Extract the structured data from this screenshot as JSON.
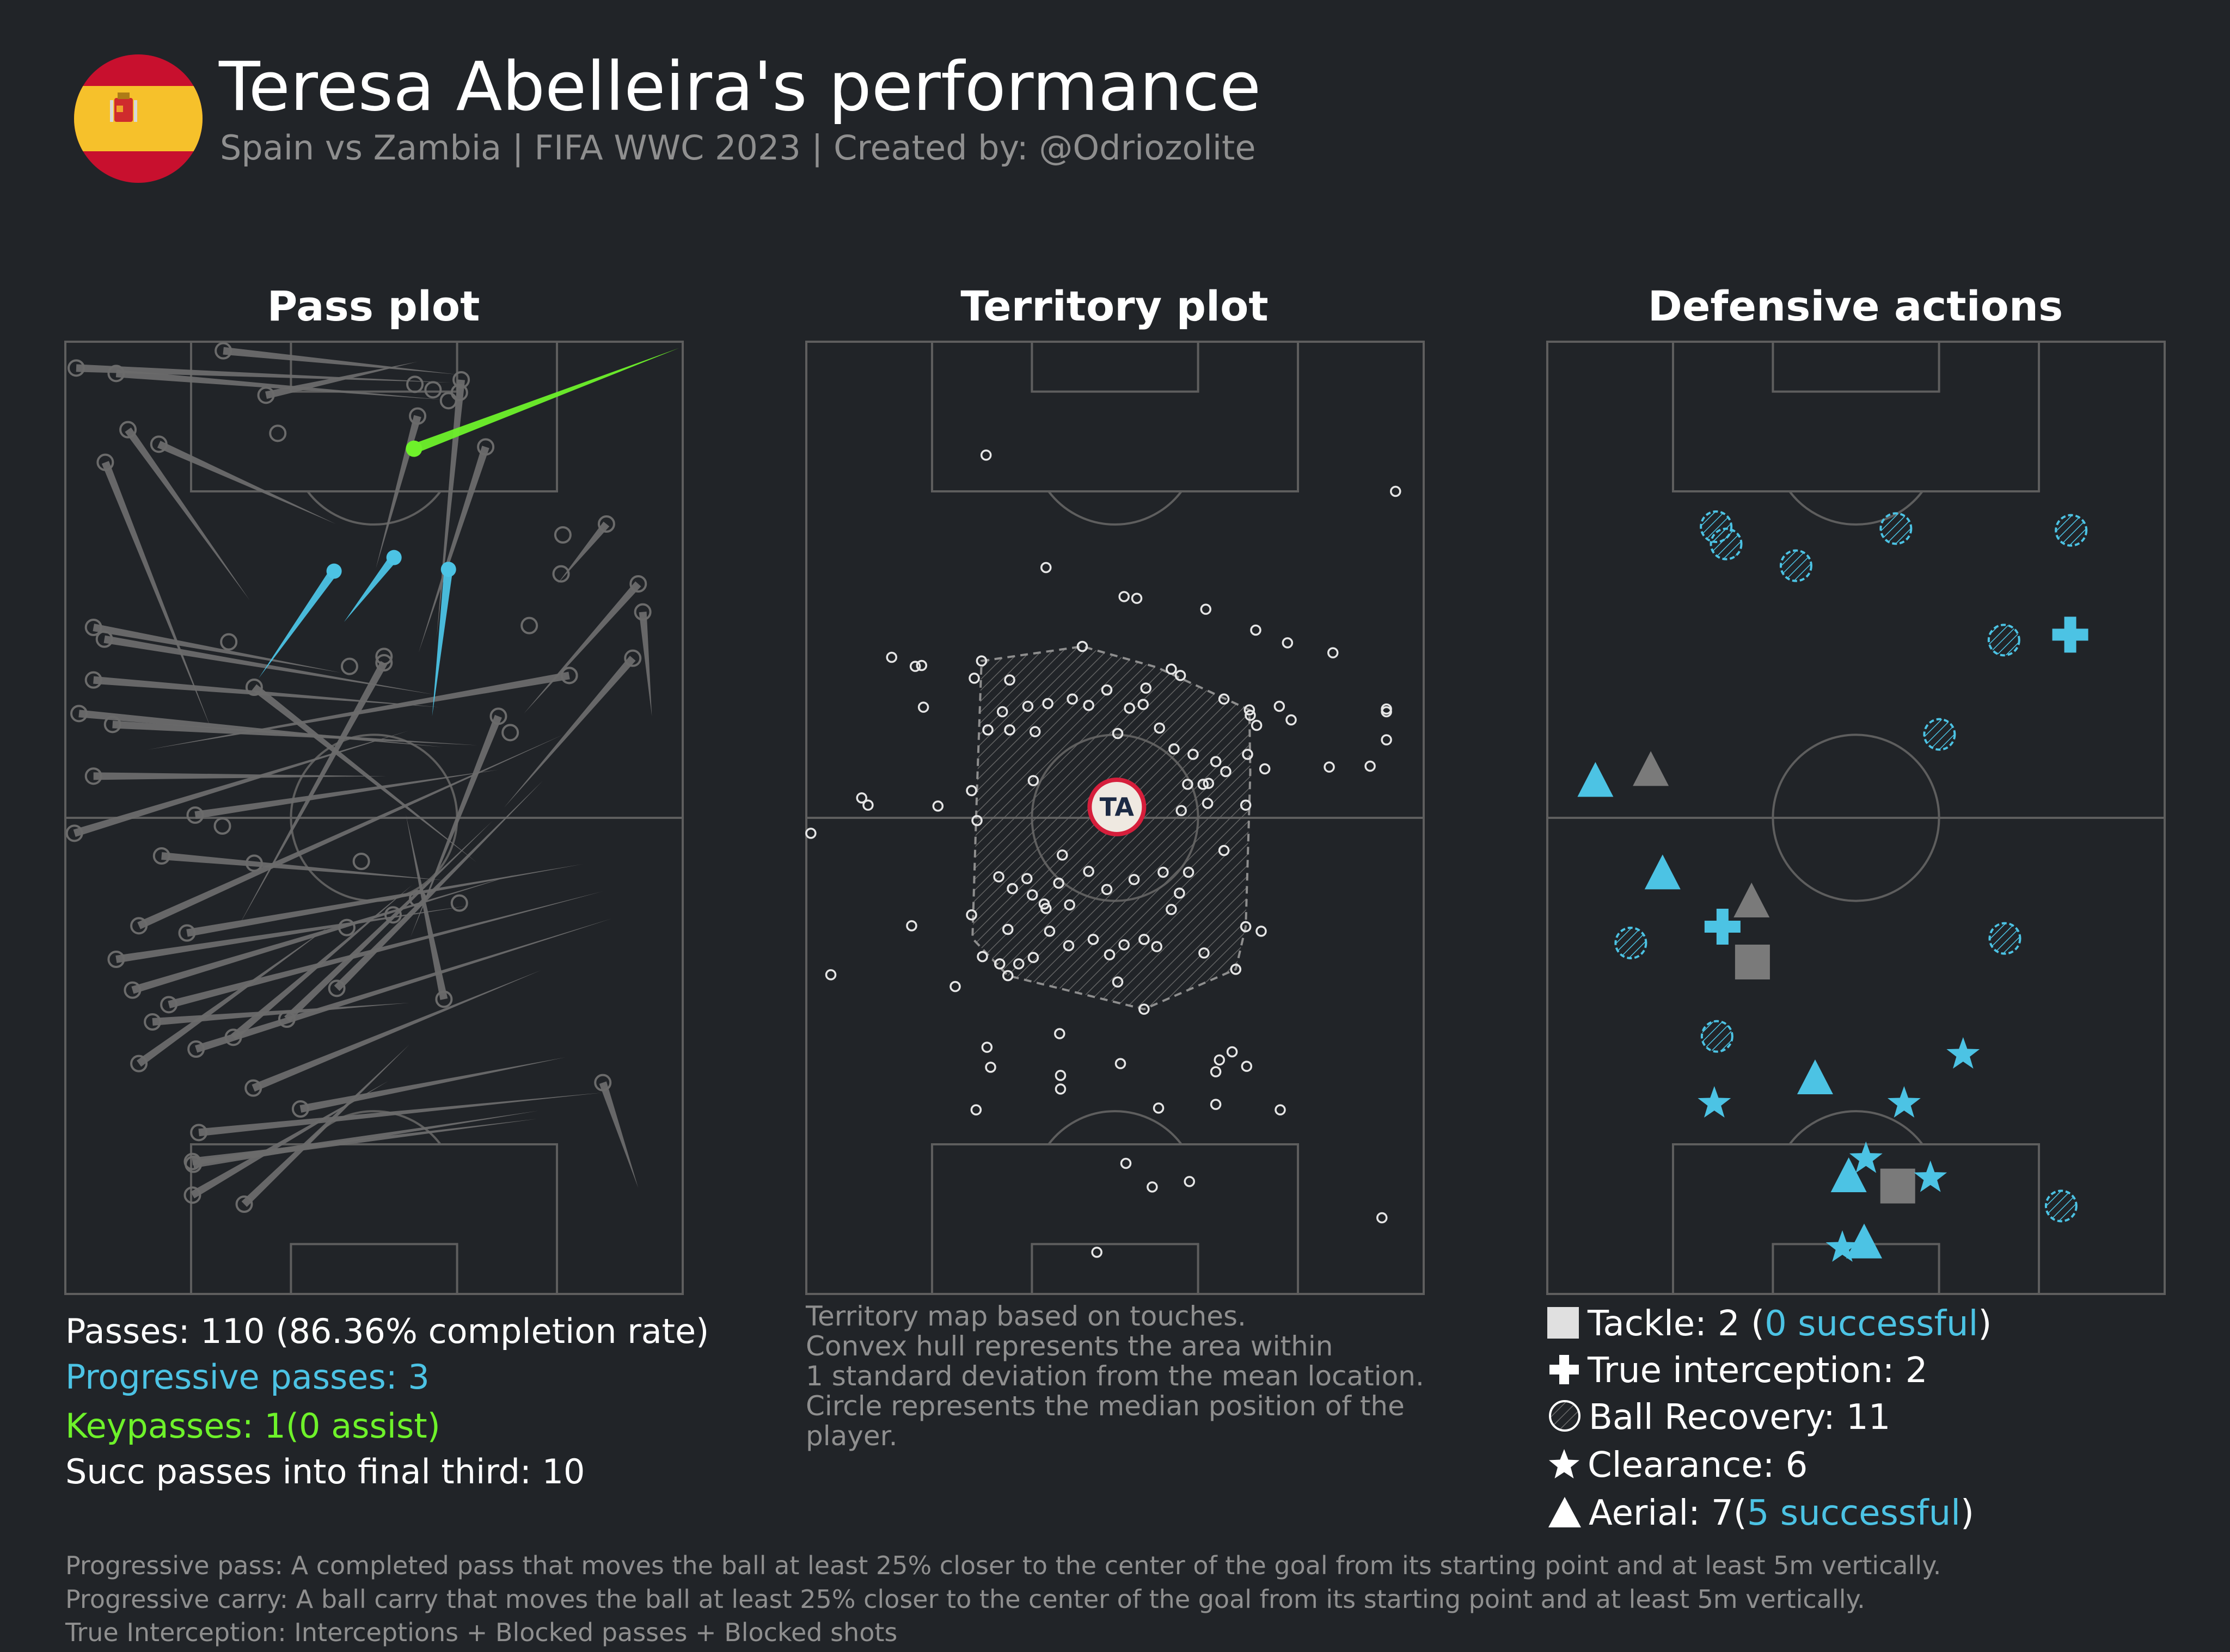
{
  "header": {
    "title": "Teresa Abelleira's performance",
    "subtitle": "Spain vs Zambia | FIFA WWC 2023 | Created by: @Odriozolite",
    "flag_icon": "spain-flag-icon"
  },
  "colors": {
    "background": "#212428",
    "pitch_line": "#5e5e5e",
    "pass": "#6b6b6b",
    "progressive": "#4cc3e4",
    "keypass": "#6ef22a",
    "muted": "#8f8f8f",
    "badge_ring": "#d61f3c"
  },
  "panels": {
    "pass_plot_title": "Pass plot",
    "territory_plot_title": "Territory plot",
    "defensive_title": "Defensive actions"
  },
  "pass_stats": {
    "passes": "Passes: 110 (86.36% completion rate)",
    "progressive": "Progressive passes: 3",
    "keypasses": "Keypasses: 1(0 assist)",
    "final_third": "Succ passes into final third: 10"
  },
  "territory_note": {
    "line1": "Territory map based on touches.",
    "line2": "Convex hull represents the area within",
    "line3": "1 standard deviation from the mean location.",
    "line4": "Circle represents the median position of the",
    "line5": "player.",
    "median_label": "TA"
  },
  "defensive_legend": {
    "tackle_prefix": "Tackle: 2 (",
    "tackle_success": "0 successful",
    "tackle_suffix": ")",
    "interception": "True interception: 2",
    "recovery": "Ball Recovery: 11",
    "clearance": "Clearance: 6",
    "aerial_prefix": "Aerial: 7(",
    "aerial_success": "5 successful",
    "aerial_suffix": ")"
  },
  "footnotes": {
    "line1": "Progressive pass: A completed pass that moves the ball at least 25% closer to the center of the goal from its starting point and at least 5m vertically.",
    "line2": "Progressive carry: A ball carry that moves the ball at least 25% closer to the center of the goal from its starting point and at least 5m vertically.",
    "line3": "True Interception: Interceptions + Blocked passes + Blocked shots"
  },
  "chart_data": [
    {
      "type": "scatter",
      "title": "Pass plot",
      "description_units": "pitch coordinates: x 0-68 across (left to right), y 0-105 up the pitch (attacking upwards)",
      "xlim": [
        0,
        68
      ],
      "ylim": [
        0,
        105
      ],
      "keypasses": [
        {
          "x1": 38.4,
          "y1": 93.2,
          "x2": 67.6,
          "y2": 104.3
        }
      ],
      "progressive_passes": [
        {
          "x1": 29.6,
          "y1": 79.7,
          "x2": 21.3,
          "y2": 67.9
        },
        {
          "x1": 36.2,
          "y1": 81.2,
          "x2": 30.7,
          "y2": 74.1
        },
        {
          "x1": 42.2,
          "y1": 79.9,
          "x2": 40.4,
          "y2": 63.7
        }
      ],
      "passes": [
        {
          "x1": 1.2,
          "y1": 102.1,
          "x2": 42.5,
          "y2": 100.5
        },
        {
          "x1": 5.6,
          "y1": 101.5,
          "x2": 41.6,
          "y2": 98.6
        },
        {
          "x1": 17.4,
          "y1": 104.0,
          "x2": 43.1,
          "y2": 101.4
        },
        {
          "x1": 22.1,
          "y1": 99.1,
          "x2": 38.8,
          "y2": 102.8
        },
        {
          "x1": 6.9,
          "y1": 95.3,
          "x2": 20.3,
          "y2": 76.5
        },
        {
          "x1": 10.3,
          "y1": 93.7,
          "x2": 29.8,
          "y2": 84.9
        },
        {
          "x1": 4.4,
          "y1": 91.7,
          "x2": 16.1,
          "y2": 62.2
        },
        {
          "x1": 46.3,
          "y1": 93.4,
          "x2": 38.9,
          "y2": 70.7
        },
        {
          "x1": 43.6,
          "y1": 100.8,
          "x2": 40.9,
          "y2": 72.4
        },
        {
          "x1": 38.8,
          "y1": 96.8,
          "x2": 34.2,
          "y2": 80.0
        },
        {
          "x1": 59.6,
          "y1": 84.9,
          "x2": 54.2,
          "y2": 78.3
        },
        {
          "x1": 63.1,
          "y1": 78.3,
          "x2": 50.5,
          "y2": 64.0
        },
        {
          "x1": 63.6,
          "y1": 75.2,
          "x2": 64.6,
          "y2": 63.7
        },
        {
          "x1": 3.1,
          "y1": 73.5,
          "x2": 30.4,
          "y2": 68.5
        },
        {
          "x1": 4.3,
          "y1": 72.2,
          "x2": 40.6,
          "y2": 66.1
        },
        {
          "x1": 3.1,
          "y1": 67.7,
          "x2": 41.2,
          "y2": 64.7
        },
        {
          "x1": 55.5,
          "y1": 68.2,
          "x2": 9.0,
          "y2": 60.0
        },
        {
          "x1": 62.5,
          "y1": 70.1,
          "x2": 48.3,
          "y2": 53.6
        },
        {
          "x1": 1.5,
          "y1": 64.0,
          "x2": 41.6,
          "y2": 60.3
        },
        {
          "x1": 5.2,
          "y1": 62.8,
          "x2": 45.4,
          "y2": 60.5
        },
        {
          "x1": 3.1,
          "y1": 57.1,
          "x2": 35.4,
          "y2": 57.1
        },
        {
          "x1": 1.0,
          "y1": 50.8,
          "x2": 37.8,
          "y2": 62.1
        },
        {
          "x1": 14.3,
          "y1": 52.8,
          "x2": 47.7,
          "y2": 57.8
        },
        {
          "x1": 20.8,
          "y1": 66.9,
          "x2": 45.3,
          "y2": 47.6
        },
        {
          "x1": 35.1,
          "y1": 69.6,
          "x2": 19.1,
          "y2": 40.6
        },
        {
          "x1": 47.7,
          "y1": 63.7,
          "x2": 38.0,
          "y2": 39.3
        },
        {
          "x1": 10.6,
          "y1": 48.3,
          "x2": 41.9,
          "y2": 45.6
        },
        {
          "x1": 8.1,
          "y1": 40.6,
          "x2": 54.9,
          "y2": 61.7
        },
        {
          "x1": 13.4,
          "y1": 39.8,
          "x2": 57.0,
          "y2": 47.4
        },
        {
          "x1": 5.6,
          "y1": 36.9,
          "x2": 44.3,
          "y2": 42.8
        },
        {
          "x1": 7.4,
          "y1": 33.5,
          "x2": 49.7,
          "y2": 46.3
        },
        {
          "x1": 11.4,
          "y1": 31.9,
          "x2": 59.2,
          "y2": 44.4
        },
        {
          "x1": 14.4,
          "y1": 27.0,
          "x2": 60.2,
          "y2": 41.4
        },
        {
          "x1": 18.5,
          "y1": 28.3,
          "x2": 38.2,
          "y2": 45.1
        },
        {
          "x1": 24.4,
          "y1": 30.3,
          "x2": 47.1,
          "y2": 52.2
        },
        {
          "x1": 29.9,
          "y1": 33.7,
          "x2": 52.6,
          "y2": 56.6
        },
        {
          "x1": 14.7,
          "y1": 17.8,
          "x2": 59.2,
          "y2": 22.2
        },
        {
          "x1": 20.7,
          "y1": 22.7,
          "x2": 52.4,
          "y2": 35.7
        },
        {
          "x1": 25.9,
          "y1": 20.4,
          "x2": 55.1,
          "y2": 26.1
        },
        {
          "x1": 14.1,
          "y1": 14.3,
          "x2": 52.1,
          "y2": 20.2
        },
        {
          "x1": 41.7,
          "y1": 32.5,
          "x2": 37.5,
          "y2": 52.9
        },
        {
          "x1": 59.2,
          "y1": 23.3,
          "x2": 63.1,
          "y2": 11.7
        },
        {
          "x1": 19.7,
          "y1": 9.9,
          "x2": 37.9,
          "y2": 27.5
        },
        {
          "x1": 14.0,
          "y1": 14.6,
          "x2": 51.9,
          "y2": 19.3
        },
        {
          "x1": 14.0,
          "y1": 10.9,
          "x2": 35.6,
          "y2": 23.5
        },
        {
          "x1": 8.1,
          "y1": 25.4,
          "x2": 29.3,
          "y2": 40.7
        },
        {
          "x1": 9.6,
          "y1": 30.0,
          "x2": 37.9,
          "y2": 32.1
        }
      ],
      "pass_endpoints": [
        {
          "x": 40.5,
          "y": 99.7
        },
        {
          "x": 43.4,
          "y": 99.4
        },
        {
          "x": 42.2,
          "y": 98.5
        },
        {
          "x": 38.5,
          "y": 100.3
        },
        {
          "x": 23.4,
          "y": 94.9
        },
        {
          "x": 54.8,
          "y": 83.7
        },
        {
          "x": 54.6,
          "y": 79.4
        },
        {
          "x": 51.1,
          "y": 73.7
        },
        {
          "x": 18.0,
          "y": 71.9
        },
        {
          "x": 55.5,
          "y": 68.2
        },
        {
          "x": 31.3,
          "y": 69.2
        },
        {
          "x": 35.1,
          "y": 70.3
        },
        {
          "x": 49.0,
          "y": 61.9
        },
        {
          "x": 17.3,
          "y": 51.6
        },
        {
          "x": 31.0,
          "y": 40.4
        },
        {
          "x": 36.1,
          "y": 41.8
        },
        {
          "x": 43.4,
          "y": 43.1
        },
        {
          "x": 38.8,
          "y": 43.6
        },
        {
          "x": 32.6,
          "y": 47.7
        },
        {
          "x": 20.8,
          "y": 47.5
        }
      ]
    },
    {
      "type": "scatter",
      "title": "Territory plot",
      "xlim": [
        0,
        68
      ],
      "ylim": [
        0,
        105
      ],
      "median": {
        "x": 34.2,
        "y": 53.7,
        "label": "TA"
      },
      "hull": [
        [
          19.3,
          69.8
        ],
        [
          30.4,
          71.4
        ],
        [
          38.6,
          69.1
        ],
        [
          48.8,
          64.4
        ],
        [
          48.9,
          57.5
        ],
        [
          48.4,
          40.5
        ],
        [
          47.3,
          35.8
        ],
        [
          37.2,
          31.4
        ],
        [
          22.2,
          35.1
        ],
        [
          18.3,
          39.2
        ],
        [
          18.8,
          55.7
        ]
      ],
      "touches": [
        {
          "x": 19.8,
          "y": 92.5
        },
        {
          "x": 64.9,
          "y": 88.5
        },
        {
          "x": 26.4,
          "y": 80.1
        },
        {
          "x": 35.0,
          "y": 76.9
        },
        {
          "x": 36.4,
          "y": 76.7
        },
        {
          "x": 44.0,
          "y": 75.5
        },
        {
          "x": 49.5,
          "y": 73.2
        },
        {
          "x": 53.0,
          "y": 71.8
        },
        {
          "x": 58.0,
          "y": 70.7
        },
        {
          "x": 9.4,
          "y": 70.2
        },
        {
          "x": 12.7,
          "y": 69.3
        },
        {
          "x": 12.0,
          "y": 69.2
        },
        {
          "x": 19.3,
          "y": 69.8
        },
        {
          "x": 30.4,
          "y": 71.4
        },
        {
          "x": 18.5,
          "y": 67.9
        },
        {
          "x": 22.4,
          "y": 67.7
        },
        {
          "x": 33.1,
          "y": 66.6
        },
        {
          "x": 37.4,
          "y": 66.8
        },
        {
          "x": 40.2,
          "y": 68.9
        },
        {
          "x": 41.2,
          "y": 68.2
        },
        {
          "x": 46.0,
          "y": 65.6
        },
        {
          "x": 48.8,
          "y": 64.4
        },
        {
          "x": 48.9,
          "y": 63.8
        },
        {
          "x": 49.6,
          "y": 62.7
        },
        {
          "x": 53.4,
          "y": 63.3
        },
        {
          "x": 52.1,
          "y": 64.8
        },
        {
          "x": 63.9,
          "y": 64.5
        },
        {
          "x": 12.9,
          "y": 64.7
        },
        {
          "x": 21.6,
          "y": 64.2
        },
        {
          "x": 24.4,
          "y": 64.8
        },
        {
          "x": 26.6,
          "y": 65.1
        },
        {
          "x": 29.3,
          "y": 65.6
        },
        {
          "x": 31.1,
          "y": 64.9
        },
        {
          "x": 35.6,
          "y": 64.6
        },
        {
          "x": 37.1,
          "y": 65.0
        },
        {
          "x": 22.4,
          "y": 62.2
        },
        {
          "x": 25.2,
          "y": 62.0
        },
        {
          "x": 34.3,
          "y": 61.8
        },
        {
          "x": 40.5,
          "y": 60.1
        },
        {
          "x": 45.1,
          "y": 58.7
        },
        {
          "x": 46.2,
          "y": 57.6
        },
        {
          "x": 48.6,
          "y": 59.5
        },
        {
          "x": 44.3,
          "y": 56.3
        },
        {
          "x": 42.6,
          "y": 59.5
        },
        {
          "x": 38.9,
          "y": 62.4
        },
        {
          "x": 20.0,
          "y": 62.2
        },
        {
          "x": 50.5,
          "y": 57.9
        },
        {
          "x": 57.6,
          "y": 58.1
        },
        {
          "x": 62.1,
          "y": 58.2
        },
        {
          "x": 63.9,
          "y": 61.1
        },
        {
          "x": 63.9,
          "y": 64.2
        },
        {
          "x": 18.2,
          "y": 55.5
        },
        {
          "x": 25.0,
          "y": 56.6
        },
        {
          "x": 6.1,
          "y": 54.7
        },
        {
          "x": 6.8,
          "y": 53.9
        },
        {
          "x": 14.5,
          "y": 53.8
        },
        {
          "x": 42.0,
          "y": 56.2
        },
        {
          "x": 43.7,
          "y": 56.2
        },
        {
          "x": 41.3,
          "y": 53.3
        },
        {
          "x": 44.2,
          "y": 54.1
        },
        {
          "x": 48.4,
          "y": 53.9
        },
        {
          "x": 18.8,
          "y": 52.2
        },
        {
          "x": 0.5,
          "y": 50.8
        },
        {
          "x": 21.2,
          "y": 46.0
        },
        {
          "x": 22.7,
          "y": 44.7
        },
        {
          "x": 24.3,
          "y": 45.8
        },
        {
          "x": 27.8,
          "y": 45.3
        },
        {
          "x": 31.1,
          "y": 46.6
        },
        {
          "x": 28.2,
          "y": 48.4
        },
        {
          "x": 33.1,
          "y": 44.6
        },
        {
          "x": 36.1,
          "y": 45.7
        },
        {
          "x": 39.3,
          "y": 46.5
        },
        {
          "x": 42.1,
          "y": 46.5
        },
        {
          "x": 24.9,
          "y": 44.0
        },
        {
          "x": 26.2,
          "y": 43.0
        },
        {
          "x": 29.0,
          "y": 42.9
        },
        {
          "x": 26.4,
          "y": 42.5
        },
        {
          "x": 41.1,
          "y": 44.2
        },
        {
          "x": 40.2,
          "y": 42.4
        },
        {
          "x": 46.0,
          "y": 48.9
        },
        {
          "x": 48.4,
          "y": 40.5
        },
        {
          "x": 11.6,
          "y": 40.6
        },
        {
          "x": 18.2,
          "y": 41.8
        },
        {
          "x": 22.2,
          "y": 40.2
        },
        {
          "x": 26.8,
          "y": 40.0
        },
        {
          "x": 28.9,
          "y": 38.4
        },
        {
          "x": 31.6,
          "y": 39.1
        },
        {
          "x": 35.0,
          "y": 38.5
        },
        {
          "x": 37.2,
          "y": 39.1
        },
        {
          "x": 38.6,
          "y": 38.3
        },
        {
          "x": 43.8,
          "y": 37.6
        },
        {
          "x": 47.3,
          "y": 35.8
        },
        {
          "x": 50.1,
          "y": 40.0
        },
        {
          "x": 19.4,
          "y": 37.2
        },
        {
          "x": 21.3,
          "y": 36.4
        },
        {
          "x": 23.4,
          "y": 36.4
        },
        {
          "x": 25.0,
          "y": 37.1
        },
        {
          "x": 33.4,
          "y": 37.4
        },
        {
          "x": 34.3,
          "y": 34.4
        },
        {
          "x": 37.2,
          "y": 31.4
        },
        {
          "x": 22.2,
          "y": 35.1
        },
        {
          "x": 16.4,
          "y": 33.9
        },
        {
          "x": 2.7,
          "y": 35.2
        },
        {
          "x": 27.9,
          "y": 28.7
        },
        {
          "x": 19.9,
          "y": 27.2
        },
        {
          "x": 20.3,
          "y": 25.0
        },
        {
          "x": 28.0,
          "y": 24.1
        },
        {
          "x": 34.6,
          "y": 25.4
        },
        {
          "x": 45.5,
          "y": 25.8
        },
        {
          "x": 46.9,
          "y": 26.7
        },
        {
          "x": 45.1,
          "y": 24.5
        },
        {
          "x": 48.5,
          "y": 25.1
        },
        {
          "x": 28.0,
          "y": 22.6
        },
        {
          "x": 18.7,
          "y": 20.3
        },
        {
          "x": 38.8,
          "y": 20.5
        },
        {
          "x": 45.1,
          "y": 20.9
        },
        {
          "x": 52.2,
          "y": 20.3
        },
        {
          "x": 35.2,
          "y": 14.4
        },
        {
          "x": 38.1,
          "y": 11.8
        },
        {
          "x": 42.2,
          "y": 12.4
        },
        {
          "x": 63.4,
          "y": 8.4
        },
        {
          "x": 32.0,
          "y": 4.6
        }
      ]
    },
    {
      "type": "scatter",
      "title": "Defensive actions",
      "xlim": [
        0,
        68
      ],
      "ylim": [
        0,
        105
      ],
      "tackles": [
        {
          "x": 22.6,
          "y": 36.6,
          "success": false
        },
        {
          "x": 38.6,
          "y": 11.9,
          "success": false
        }
      ],
      "interceptions": [
        {
          "x": 19.3,
          "y": 40.5
        },
        {
          "x": 57.6,
          "y": 72.7
        }
      ],
      "recoveries": [
        {
          "x": 18.6,
          "y": 84.6
        },
        {
          "x": 19.7,
          "y": 82.7
        },
        {
          "x": 27.4,
          "y": 80.3
        },
        {
          "x": 38.4,
          "y": 84.4
        },
        {
          "x": 57.7,
          "y": 84.2
        },
        {
          "x": 50.3,
          "y": 72.1
        },
        {
          "x": 43.2,
          "y": 61.7
        },
        {
          "x": 9.2,
          "y": 38.7
        },
        {
          "x": 50.4,
          "y": 39.2
        },
        {
          "x": 18.7,
          "y": 28.4
        },
        {
          "x": 56.6,
          "y": 9.7
        }
      ],
      "clearances": [
        {
          "x": 18.4,
          "y": 21.0
        },
        {
          "x": 39.3,
          "y": 21.0
        },
        {
          "x": 45.8,
          "y": 26.4
        },
        {
          "x": 35.1,
          "y": 14.9
        },
        {
          "x": 42.2,
          "y": 12.8
        },
        {
          "x": 32.5,
          "y": 5.1
        }
      ],
      "aerials": [
        {
          "x": 5.3,
          "y": 56.5,
          "success": true
        },
        {
          "x": 11.4,
          "y": 57.7,
          "success": false
        },
        {
          "x": 12.7,
          "y": 46.3,
          "success": true
        },
        {
          "x": 22.5,
          "y": 43.2,
          "success": false
        },
        {
          "x": 29.5,
          "y": 23.7,
          "success": true
        },
        {
          "x": 33.2,
          "y": 12.9,
          "success": true
        },
        {
          "x": 34.9,
          "y": 5.6,
          "success": true
        }
      ]
    }
  ]
}
